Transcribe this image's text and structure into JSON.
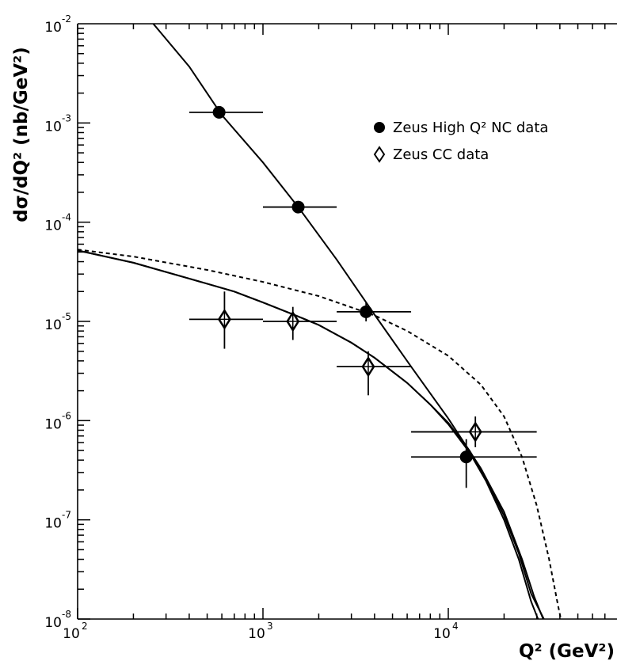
{
  "chart_data": {
    "type": "scatter",
    "xlabel": "Q² (GeV²)",
    "ylabel": "dσ/dQ² (nb/GeV²)",
    "xscale": "log",
    "yscale": "log",
    "xlim": [
      100,
      40000
    ],
    "ylim": [
      1e-08,
      0.01
    ],
    "x_ticks": [
      {
        "value": 100,
        "base": "10",
        "exp": "2"
      },
      {
        "value": 1000,
        "base": "10",
        "exp": "3"
      },
      {
        "value": 10000,
        "base": "10",
        "exp": "4"
      }
    ],
    "y_ticks": [
      {
        "value": 0.01,
        "base": "10",
        "exp": "-2"
      },
      {
        "value": 0.001,
        "base": "10",
        "exp": "-3"
      },
      {
        "value": 0.0001,
        "base": "10",
        "exp": "-4"
      },
      {
        "value": 1e-05,
        "base": "10",
        "exp": "-5"
      },
      {
        "value": 1e-06,
        "base": "10",
        "exp": "-6"
      },
      {
        "value": 1e-07,
        "base": "10",
        "exp": "-7"
      },
      {
        "value": 1e-08,
        "base": "10",
        "exp": "-8"
      }
    ],
    "legend_position": "top-right",
    "series": [
      {
        "name": "Zeus High Q² NC data",
        "marker": "filled-circle",
        "points": [
          {
            "x": 580,
            "y": 0.00128,
            "xlo": 400,
            "xhi": 1000,
            "ylo": 0.00115,
            "yhi": 0.00142
          },
          {
            "x": 1550,
            "y": 0.000142,
            "xlo": 1000,
            "xhi": 2500,
            "ylo": 0.000128,
            "yhi": 0.000156
          },
          {
            "x": 3600,
            "y": 1.25e-05,
            "xlo": 2500,
            "xhi": 6300,
            "ylo": 1e-05,
            "yhi": 1.55e-05
          },
          {
            "x": 12500,
            "y": 4.3e-07,
            "xlo": 6300,
            "xhi": 30000,
            "ylo": 2.1e-07,
            "yhi": 6.5e-07
          }
        ]
      },
      {
        "name": "Zeus CC data",
        "marker": "open-diamond",
        "points": [
          {
            "x": 620,
            "y": 1.05e-05,
            "xlo": 400,
            "xhi": 1000,
            "ylo": 5.3e-06,
            "yhi": 2e-05
          },
          {
            "x": 1450,
            "y": 1e-05,
            "xlo": 1000,
            "xhi": 2500,
            "ylo": 6.5e-06,
            "yhi": 1.4e-05
          },
          {
            "x": 3700,
            "y": 3.5e-06,
            "xlo": 2500,
            "xhi": 6300,
            "ylo": 1.8e-06,
            "yhi": 5e-06
          },
          {
            "x": 14000,
            "y": 7.7e-07,
            "xlo": 6300,
            "xhi": 30000,
            "ylo": 5.4e-07,
            "yhi": 1.1e-06
          }
        ]
      }
    ],
    "curves": [
      {
        "style": "solid",
        "points": [
          [
            256,
            0.01
          ],
          [
            400,
            0.0037
          ],
          [
            600,
            0.0012
          ],
          [
            1000,
            0.0004
          ],
          [
            1550,
            0.000142
          ],
          [
            2500,
            4.2e-05
          ],
          [
            4000,
            1.17e-05
          ],
          [
            6300,
            3.5e-06
          ],
          [
            10000,
            1.05e-06
          ],
          [
            15000,
            3.3e-07
          ],
          [
            20000,
            1.2e-07
          ],
          [
            25000,
            4e-08
          ],
          [
            29000,
            1.7e-08
          ],
          [
            32500,
            1e-08
          ]
        ]
      },
      {
        "style": "solid",
        "points": [
          [
            100,
            5.2e-05
          ],
          [
            200,
            3.9e-05
          ],
          [
            400,
            2.7e-05
          ],
          [
            700,
            2e-05
          ],
          [
            1000,
            1.55e-05
          ],
          [
            1500,
            1.15e-05
          ],
          [
            2000,
            9.2e-06
          ],
          [
            3000,
            6.1e-06
          ],
          [
            4000,
            4.3e-06
          ],
          [
            6000,
            2.4e-06
          ],
          [
            8000,
            1.45e-06
          ],
          [
            10000,
            9.2e-07
          ],
          [
            13000,
            4.8e-07
          ],
          [
            16000,
            2.45e-07
          ],
          [
            20000,
            1e-07
          ],
          [
            24000,
            4e-08
          ],
          [
            28000,
            1.5e-08
          ],
          [
            30500,
            1e-08
          ]
        ]
      },
      {
        "style": "solid",
        "points": [
          [
            100,
            5.2e-05
          ],
          [
            200,
            3.9e-05
          ],
          [
            400,
            2.7e-05
          ],
          [
            700,
            2e-05
          ],
          [
            1000,
            1.55e-05
          ],
          [
            1500,
            1.15e-05
          ],
          [
            2000,
            9.2e-06
          ],
          [
            3000,
            6.1e-06
          ],
          [
            4000,
            4.3e-06
          ],
          [
            6000,
            2.4e-06
          ],
          [
            8000,
            1.45e-06
          ],
          [
            10000,
            9.5e-07
          ],
          [
            13000,
            5e-07
          ],
          [
            16000,
            2.6e-07
          ],
          [
            20000,
            1.1e-07
          ],
          [
            24000,
            4.6e-08
          ],
          [
            28000,
            1.8e-08
          ],
          [
            32800,
            1e-08
          ]
        ]
      },
      {
        "style": "dashed",
        "points": [
          [
            100,
            5.3e-05
          ],
          [
            200,
            4.5e-05
          ],
          [
            500,
            3.3e-05
          ],
          [
            1000,
            2.5e-05
          ],
          [
            2000,
            1.8e-05
          ],
          [
            4000,
            1.15e-05
          ],
          [
            6000,
            8e-06
          ],
          [
            10000,
            4.5e-06
          ],
          [
            15000,
            2.3e-06
          ],
          [
            20000,
            1.1e-06
          ],
          [
            25000,
            4.3e-07
          ],
          [
            30000,
            1.4e-07
          ],
          [
            35000,
            4e-08
          ],
          [
            39000,
            1.4e-08
          ],
          [
            40500,
            1e-08
          ]
        ]
      }
    ]
  }
}
